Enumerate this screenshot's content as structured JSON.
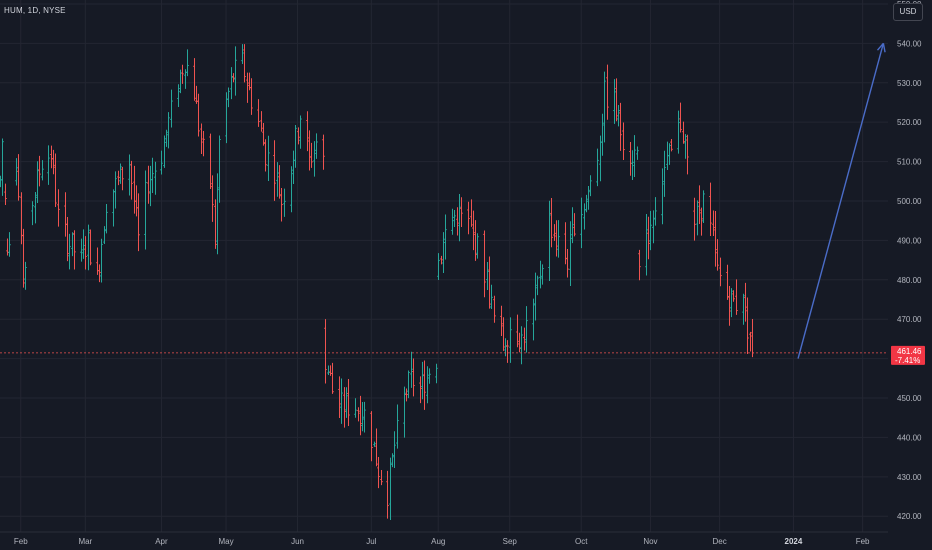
{
  "header": {
    "symbol": "HUM, 1D, NYSE",
    "currency": "USD"
  },
  "price_tag": {
    "price": "461.46",
    "change": "-7.41%"
  },
  "colors": {
    "up": "#26a69a",
    "down": "#ef5350",
    "arrow": "#4a6cc8",
    "grid": "#232632",
    "background": "#161a25"
  },
  "chart_data": {
    "type": "ohlc",
    "y_ticks": [
      420,
      430,
      440,
      450,
      460,
      470,
      480,
      490,
      500,
      510,
      520,
      530,
      540,
      550
    ],
    "y_range": [
      416,
      551
    ],
    "x_range": [
      "2023-01-23",
      "2024-02-12"
    ],
    "x_labels": [
      {
        "date": "2023-02-01",
        "label": "Feb"
      },
      {
        "date": "2023-03-01",
        "label": "Mar"
      },
      {
        "date": "2023-04-03",
        "label": "Apr"
      },
      {
        "date": "2023-05-01",
        "label": "May"
      },
      {
        "date": "2023-06-01",
        "label": "Jun"
      },
      {
        "date": "2023-07-03",
        "label": "Jul"
      },
      {
        "date": "2023-08-01",
        "label": "Aug"
      },
      {
        "date": "2023-09-01",
        "label": "Sep"
      },
      {
        "date": "2023-10-02",
        "label": "Oct"
      },
      {
        "date": "2023-11-01",
        "label": "Nov"
      },
      {
        "date": "2023-12-01",
        "label": "Dec"
      },
      {
        "date": "2024-01-02",
        "label": "2024",
        "bold": true
      },
      {
        "date": "2024-02-01",
        "label": "Feb"
      }
    ],
    "anchors": [
      [
        "2023-01-23",
        505
      ],
      [
        "2023-01-24",
        515
      ],
      [
        "2023-01-26",
        485
      ],
      [
        "2023-01-30",
        508
      ],
      [
        "2023-02-02",
        478
      ],
      [
        "2023-02-06",
        500
      ],
      [
        "2023-02-10",
        510
      ],
      [
        "2023-02-14",
        512
      ],
      [
        "2023-02-17",
        496
      ],
      [
        "2023-02-21",
        490
      ],
      [
        "2023-02-27",
        485
      ],
      [
        "2023-03-02",
        490
      ],
      [
        "2023-03-06",
        480
      ],
      [
        "2023-03-10",
        500
      ],
      [
        "2023-03-15",
        505
      ],
      [
        "2023-03-20",
        510
      ],
      [
        "2023-03-24",
        490
      ],
      [
        "2023-03-28",
        505
      ],
      [
        "2023-04-03",
        512
      ],
      [
        "2023-04-06",
        520
      ],
      [
        "2023-04-10",
        530
      ],
      [
        "2023-04-13",
        536
      ],
      [
        "2023-04-17",
        528
      ],
      [
        "2023-04-20",
        515
      ],
      [
        "2023-04-24",
        505
      ],
      [
        "2023-04-26",
        490
      ],
      [
        "2023-04-28",
        515
      ],
      [
        "2023-05-01",
        525
      ],
      [
        "2023-05-04",
        532
      ],
      [
        "2023-05-08",
        535
      ],
      [
        "2023-05-11",
        528
      ],
      [
        "2023-05-15",
        520
      ],
      [
        "2023-05-18",
        512
      ],
      [
        "2023-05-22",
        508
      ],
      [
        "2023-05-25",
        500
      ],
      [
        "2023-05-30",
        512
      ],
      [
        "2023-06-02",
        522
      ],
      [
        "2023-06-06",
        510
      ],
      [
        "2023-06-09",
        515
      ],
      [
        "2023-06-12",
        510
      ],
      [
        "2023-06-13",
        460
      ],
      [
        "2023-06-16",
        452
      ],
      [
        "2023-06-20",
        448
      ],
      [
        "2023-06-26",
        448
      ],
      [
        "2023-06-30",
        446
      ],
      [
        "2023-07-03",
        440
      ],
      [
        "2023-07-06",
        432
      ],
      [
        "2023-07-10",
        426
      ],
      [
        "2023-07-13",
        438
      ],
      [
        "2023-07-17",
        450
      ],
      [
        "2023-07-20",
        455
      ],
      [
        "2023-07-24",
        452
      ],
      [
        "2023-07-27",
        456
      ],
      [
        "2023-07-31",
        460
      ],
      [
        "2023-08-01",
        485
      ],
      [
        "2023-08-04",
        492
      ],
      [
        "2023-08-09",
        497
      ],
      [
        "2023-08-14",
        494
      ],
      [
        "2023-08-18",
        488
      ],
      [
        "2023-08-22",
        480
      ],
      [
        "2023-08-25",
        470
      ],
      [
        "2023-08-29",
        464
      ],
      [
        "2023-09-01",
        468
      ],
      [
        "2023-09-06",
        465
      ],
      [
        "2023-09-11",
        472
      ],
      [
        "2023-09-14",
        482
      ],
      [
        "2023-09-18",
        495
      ],
      [
        "2023-09-21",
        490
      ],
      [
        "2023-09-26",
        485
      ],
      [
        "2023-09-29",
        495
      ],
      [
        "2023-10-04",
        500
      ],
      [
        "2023-10-09",
        512
      ],
      [
        "2023-10-12",
        527
      ],
      [
        "2023-10-16",
        525
      ],
      [
        "2023-10-19",
        518
      ],
      [
        "2023-10-23",
        512
      ],
      [
        "2023-10-26",
        512
      ],
      [
        "2023-10-27",
        482
      ],
      [
        "2023-10-31",
        492
      ],
      [
        "2023-11-03",
        500
      ],
      [
        "2023-11-07",
        508
      ],
      [
        "2023-11-10",
        512
      ],
      [
        "2023-11-14",
        520
      ],
      [
        "2023-11-16",
        515
      ],
      [
        "2023-11-20",
        495
      ],
      [
        "2023-11-24",
        500
      ],
      [
        "2023-11-28",
        490
      ],
      [
        "2023-11-30",
        482
      ],
      [
        "2023-12-04",
        476
      ],
      [
        "2023-12-08",
        474
      ],
      [
        "2023-12-11",
        478
      ],
      [
        "2023-12-12",
        470
      ],
      [
        "2023-12-14",
        466
      ],
      [
        "2023-12-15",
        461.46
      ]
    ],
    "last_close": 461.46,
    "arrow": {
      "from": [
        "2024-01-04",
        460
      ],
      "to": [
        "2024-02-10",
        540
      ]
    }
  }
}
